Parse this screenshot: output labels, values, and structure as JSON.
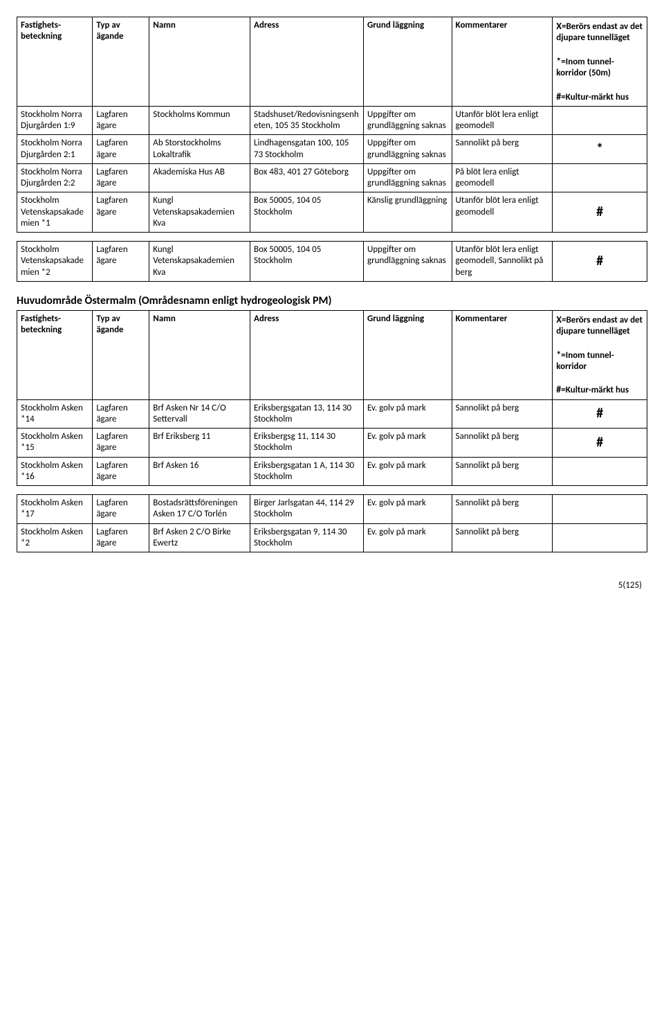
{
  "table1": {
    "headers": {
      "fastighet": "Fastighets-beteckning",
      "typ": "Typ av ägande",
      "namn": "Namn",
      "adress": "Adress",
      "grund": "Grund läggning",
      "kommentar": "Kommentarer",
      "legend_x": "X",
      "legend_x_text": "=Berörs endast av det djupare tunnelläget",
      "legend_star": "*",
      "legend_star_text": "=Inom tunnel-korridor (50m)",
      "legend_hash": "#",
      "legend_hash_text": "=Kultur-märkt hus"
    },
    "rows": [
      {
        "fastighet": "Stockholm Norra Djurgården 1:9",
        "typ": "Lagfaren ägare",
        "namn": "Stockholms Kommun",
        "adress": "Stadshuset/Redovisningsenheten, 105 35 Stockholm",
        "grund": "Uppgifter om grundläggning saknas",
        "kommentar": "Utanför blöt lera enligt geomodell",
        "sym": ""
      },
      {
        "fastighet": "Stockholm Norra Djurgården 2:1",
        "typ": "Lagfaren ägare",
        "namn": "Ab Storstockholms Lokaltrafik",
        "adress": "Lindhagensgatan 100, 105 73 Stockholm",
        "grund": "Uppgifter om grundläggning saknas",
        "kommentar": "Sannolikt på berg",
        "sym": "*"
      },
      {
        "fastighet": "Stockholm Norra Djurgården 2:2",
        "typ": "Lagfaren ägare",
        "namn": "Akademiska Hus AB",
        "adress": "Box 483, 401 27 Göteborg",
        "grund": "Uppgifter om grundläggning saknas",
        "kommentar": "På blöt lera enligt geomodell",
        "sym": ""
      },
      {
        "fastighet": "Stockholm Vetenskapsakademien *1",
        "typ": "Lagfaren ägare",
        "namn": "Kungl Vetenskapsakademien Kva",
        "adress": "Box 50005, 104 05 Stockholm",
        "grund": "Känslig grundläggning",
        "kommentar": "Utanför blöt lera enligt geomodell",
        "sym": "#"
      }
    ],
    "tail_row": {
      "fastighet": "Stockholm Vetenskapsakademien *2",
      "typ": "Lagfaren ägare",
      "namn": "Kungl Vetenskapsakademien Kva",
      "adress": "Box 50005, 104 05 Stockholm",
      "grund": "Uppgifter om grundläggning saknas",
      "kommentar": "Utanför blöt lera enligt geomodell, Sannolikt på berg",
      "sym": "#"
    }
  },
  "section2": {
    "title": "Huvudområde Östermalm (Områdesnamn enligt hydrogeologisk PM)",
    "headers": {
      "fastighet": "Fastighets-beteckning",
      "typ": "Typ av ägande",
      "namn": "Namn",
      "adress": "Adress",
      "grund": "Grund läggning",
      "kommentar": "Kommentarer",
      "legend_x": "X",
      "legend_x_text": "=Berörs endast av det djupare tunnelläget",
      "legend_star": "*",
      "legend_star_text": "=Inom tunnel-korridor",
      "legend_hash": "#",
      "legend_hash_text": "=Kultur-märkt hus"
    },
    "rows": [
      {
        "fastighet": "Stockholm Asken *14",
        "typ": "Lagfaren ägare",
        "namn": "Brf Asken Nr 14 C/O Settervall",
        "adress": "Eriksbergsgatan 13, 114 30 Stockholm",
        "grund": "Ev. golv på mark",
        "kommentar": "Sannolikt på berg",
        "sym": "#"
      },
      {
        "fastighet": "Stockholm Asken *15",
        "typ": "Lagfaren ägare",
        "namn": "Brf Eriksberg 11",
        "adress": "Eriksbergsg 11, 114 30 Stockholm",
        "grund": "Ev. golv på mark",
        "kommentar": "Sannolikt på berg",
        "sym": "#"
      },
      {
        "fastighet": "Stockholm Asken *16",
        "typ": "Lagfaren ägare",
        "namn": "Brf Asken 16",
        "adress": "Eriksbergsgatan 1 A, 114 30 Stockholm",
        "grund": "Ev. golv på mark",
        "kommentar": "Sannolikt på berg",
        "sym": ""
      }
    ],
    "tail_rows": [
      {
        "fastighet": "Stockholm Asken *17",
        "typ": "Lagfaren ägare",
        "namn": "Bostadsrättsföreningen Asken 17 C/O Torlén",
        "adress": "Birger Jarlsgatan 44, 114 29 Stockholm",
        "grund": "Ev. golv på mark",
        "kommentar": "Sannolikt på berg",
        "sym": ""
      },
      {
        "fastighet": "Stockholm Asken *2",
        "typ": "Lagfaren ägare",
        "namn": "Brf Asken 2 C/O Birke Ewertz",
        "adress": "Eriksbergsgatan 9, 114 30 Stockholm",
        "grund": "Ev. golv på mark",
        "kommentar": "Sannolikt på berg",
        "sym": ""
      }
    ]
  },
  "footer": "5(125)"
}
